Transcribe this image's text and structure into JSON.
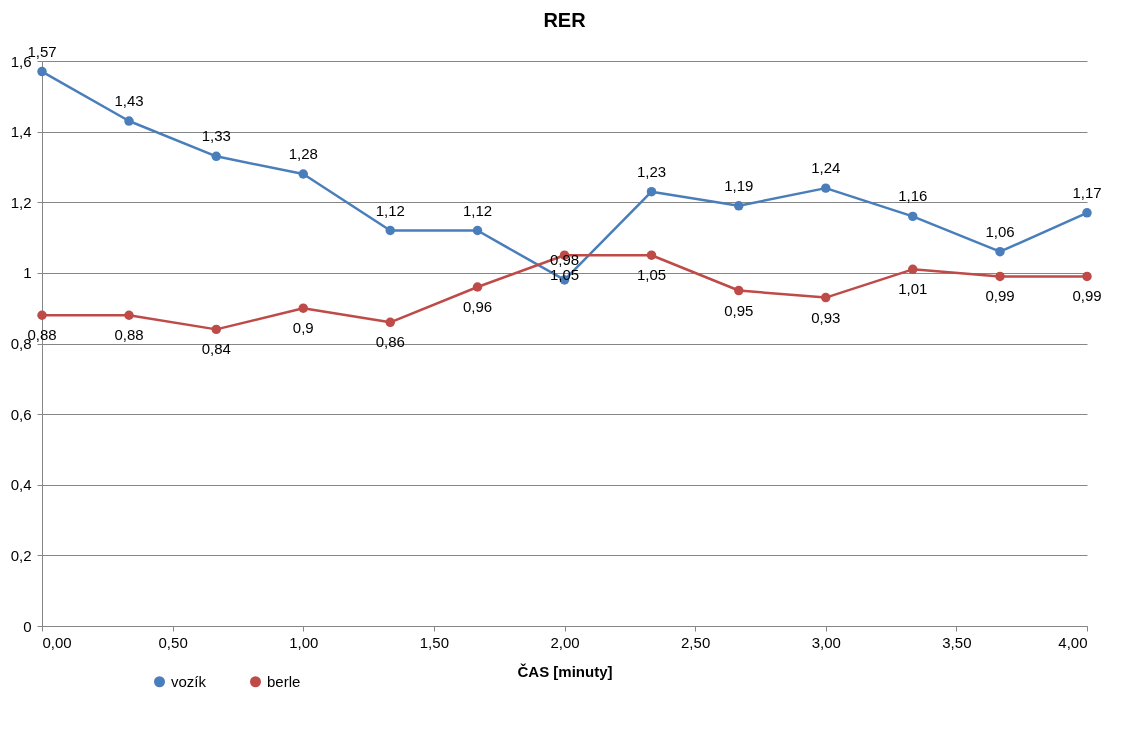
{
  "chart_data": {
    "type": "line",
    "title": "RER",
    "xlabel": "ČAS [minuty]",
    "x": [
      0,
      0.333,
      0.667,
      1,
      1.333,
      1.667,
      2,
      2.333,
      2.667,
      3,
      3.333,
      3.667,
      4
    ],
    "series": [
      {
        "name": "vozík",
        "color": "#4a7ebb",
        "values": [
          1.57,
          1.43,
          1.33,
          1.28,
          1.12,
          1.12,
          0.98,
          1.23,
          1.19,
          1.24,
          1.16,
          1.06,
          1.17
        ],
        "value_labels": [
          "1,57",
          "1,43",
          "1,33",
          "1,28",
          "1,12",
          "1,12",
          "0,98",
          "1,23",
          "1,19",
          "1,24",
          "1,16",
          "1,06",
          "1,17"
        ]
      },
      {
        "name": "berle",
        "color": "#be4b48",
        "values": [
          0.88,
          0.88,
          0.84,
          0.9,
          0.86,
          0.96,
          1.05,
          1.05,
          0.95,
          0.93,
          1.01,
          0.99,
          0.99
        ],
        "value_labels": [
          "0,88",
          "0,88",
          "0,84",
          "0,9",
          "0,86",
          "0,96",
          "1,05",
          "1,05",
          "0,95",
          "0,93",
          "1,01",
          "0,99",
          "0,99"
        ]
      }
    ],
    "xlim": [
      0,
      4
    ],
    "xticks": [
      {
        "value": 0,
        "label": "0,00"
      },
      {
        "value": 0.5,
        "label": "0,50"
      },
      {
        "value": 1,
        "label": "1,00"
      },
      {
        "value": 1.5,
        "label": "1,50"
      },
      {
        "value": 2,
        "label": "2,00"
      },
      {
        "value": 2.5,
        "label": "2,50"
      },
      {
        "value": 3,
        "label": "3,00"
      },
      {
        "value": 3.5,
        "label": "3,50"
      },
      {
        "value": 4,
        "label": "4,00"
      }
    ],
    "ylim": [
      0,
      1.6
    ],
    "yticks": [
      0,
      {
        "value": 0.2,
        "label": "0,2"
      },
      {
        "value": 0.4,
        "label": "0,4"
      },
      {
        "value": 0.6,
        "label": "0,6"
      },
      {
        "value": 0.8,
        "label": "0,8"
      },
      1,
      {
        "value": 1.2,
        "label": "1,2"
      },
      {
        "value": 1.4,
        "label": "1,4"
      },
      {
        "value": 1.6,
        "label": "1,6"
      }
    ],
    "grid": "y",
    "legend": "bottom left",
    "marker": "circle",
    "line_style": "solid"
  }
}
